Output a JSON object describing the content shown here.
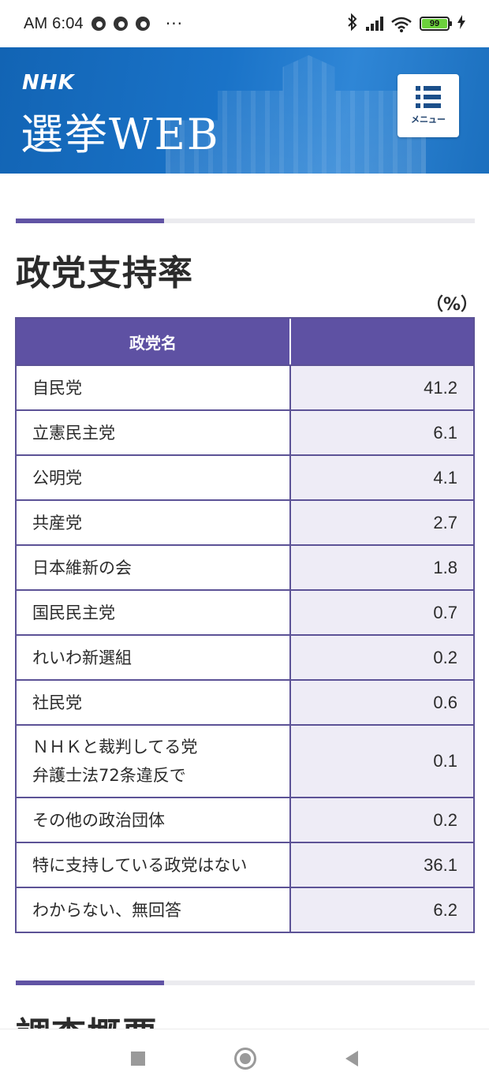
{
  "status_bar": {
    "time": "AM 6:04",
    "more": "···",
    "battery_level": "99",
    "icons": [
      "chrome-icon",
      "chrome-icon",
      "chrome-icon",
      "bluetooth-icon",
      "signal-icon",
      "wifi-icon",
      "battery-icon",
      "charging-icon"
    ]
  },
  "header": {
    "brand": "NHK",
    "title": "選挙WEB",
    "menu_label": "メニュー"
  },
  "section": {
    "title": "政党支持率",
    "unit": "（%）"
  },
  "table": {
    "headers": [
      "政党名",
      ""
    ],
    "rows": [
      {
        "name": "自民党",
        "value": "41.2"
      },
      {
        "name": "立憲民主党",
        "value": "6.1"
      },
      {
        "name": "公明党",
        "value": "4.1"
      },
      {
        "name": "共産党",
        "value": "2.7"
      },
      {
        "name": "日本維新の会",
        "value": "1.8"
      },
      {
        "name": "国民民主党",
        "value": "0.7"
      },
      {
        "name": "れいわ新選組",
        "value": "0.2"
      },
      {
        "name": "社民党",
        "value": "0.6"
      },
      {
        "name_line1": "ＮＨＫと裁判してる党",
        "name_line2": "弁護士法72条違反で",
        "value": "0.1"
      },
      {
        "name": "その他の政治団体",
        "value": "0.2"
      },
      {
        "name": "特に支持している政党はない",
        "value": "36.1"
      },
      {
        "name": "わからない、無回答",
        "value": "6.2"
      }
    ]
  },
  "section2": {
    "title": "調査概要"
  },
  "colors": {
    "header_blue": "#1a73c8",
    "accent_purple": "#5e51a3",
    "value_cell_bg": "#eeecf6"
  }
}
